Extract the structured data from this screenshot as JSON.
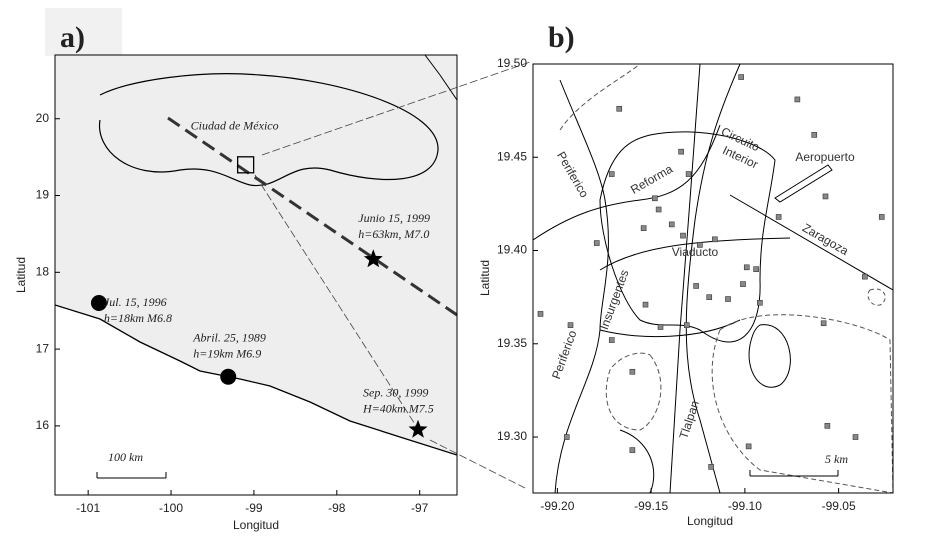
{
  "panels": [
    {
      "label": "a)",
      "x_label": "Longitud",
      "y_label": "Latitud",
      "xlim": [
        -101.4,
        -96.55
      ],
      "ylim": [
        15.1,
        20.83
      ],
      "xticks": [
        -101,
        -100,
        -99,
        -98,
        -97
      ],
      "yticks": [
        16,
        17,
        18,
        19,
        20
      ],
      "city": {
        "label": "Ciudad de México",
        "lon": -99.1,
        "lat": 19.4
      },
      "events": [
        {
          "date": "Junio 15, 1999",
          "detail": "h=63km, M7.0",
          "lon": -97.56,
          "lat": 18.17,
          "marker": "star"
        },
        {
          "date": "Jul. 15, 1996",
          "detail": "h=18km M6.8",
          "lon": -100.87,
          "lat": 17.6,
          "marker": "circle"
        },
        {
          "date": "Abril. 25, 1989",
          "detail": "h=19km M6.9",
          "lon": -99.31,
          "lat": 16.64,
          "marker": "circle"
        },
        {
          "date": "Sep. 30, 1999",
          "detail": "H=40km M7.5",
          "lon": -97.02,
          "lat": 15.95,
          "marker": "star"
        }
      ],
      "scale_label": "100 km"
    },
    {
      "label": "b)",
      "x_label": "Longitud",
      "y_label": "Latitud",
      "xlim": [
        -99.213,
        -99.021
      ],
      "ylim": [
        19.27,
        19.5
      ],
      "xticks": [
        {
          "value": -99.2,
          "label": "-99.20"
        },
        -99.15,
        {
          "value": -99.1,
          "label": "-99.10"
        },
        -99.05
      ],
      "yticks": [
        {
          "value": 19.3,
          "label": "19.30"
        },
        19.35,
        {
          "value": 19.4,
          "label": "19.40"
        },
        19.45,
        {
          "value": 19.5,
          "label": "19.50"
        }
      ],
      "streets": [
        "Periferico",
        "Reforma",
        "Circuito",
        "Interior",
        "Aeropuerto",
        "Zaragoza",
        "Viaducto",
        "Insurgentes",
        "Periferico",
        "Tlalpan"
      ],
      "stations": [
        [
          -99.167,
          19.476
        ],
        [
          -99.072,
          19.481
        ],
        [
          -99.102,
          19.493
        ],
        [
          -99.134,
          19.453
        ],
        [
          -99.146,
          19.422
        ],
        [
          -99.139,
          19.414
        ],
        [
          -99.133,
          19.408
        ],
        [
          -99.124,
          19.403
        ],
        [
          -99.116,
          19.406
        ],
        [
          -99.099,
          19.391
        ],
        [
          -99.092,
          19.372
        ],
        [
          -99.101,
          19.382
        ],
        [
          -99.109,
          19.374
        ],
        [
          -99.119,
          19.375
        ],
        [
          -99.126,
          19.381
        ],
        [
          -99.131,
          19.36
        ],
        [
          -99.145,
          19.359
        ],
        [
          -99.153,
          19.371
        ],
        [
          -99.16,
          19.335
        ],
        [
          -99.171,
          19.352
        ],
        [
          -99.179,
          19.404
        ],
        [
          -99.193,
          19.36
        ],
        [
          -99.209,
          19.366
        ],
        [
          -99.195,
          19.3
        ],
        [
          -99.16,
          19.293
        ],
        [
          -99.098,
          19.295
        ],
        [
          -99.056,
          19.306
        ],
        [
          -99.041,
          19.3
        ],
        [
          -99.058,
          19.361
        ],
        [
          -99.036,
          19.386
        ],
        [
          -99.027,
          19.418
        ],
        [
          -99.063,
          19.462
        ],
        [
          -99.057,
          19.429
        ],
        [
          -99.082,
          19.418
        ],
        [
          -99.094,
          19.39
        ],
        [
          -99.118,
          19.284
        ],
        [
          -99.171,
          19.441
        ],
        [
          -99.13,
          19.441
        ],
        [
          -99.154,
          19.412
        ],
        [
          -99.148,
          19.428
        ]
      ],
      "scale_label": "5 km"
    }
  ]
}
